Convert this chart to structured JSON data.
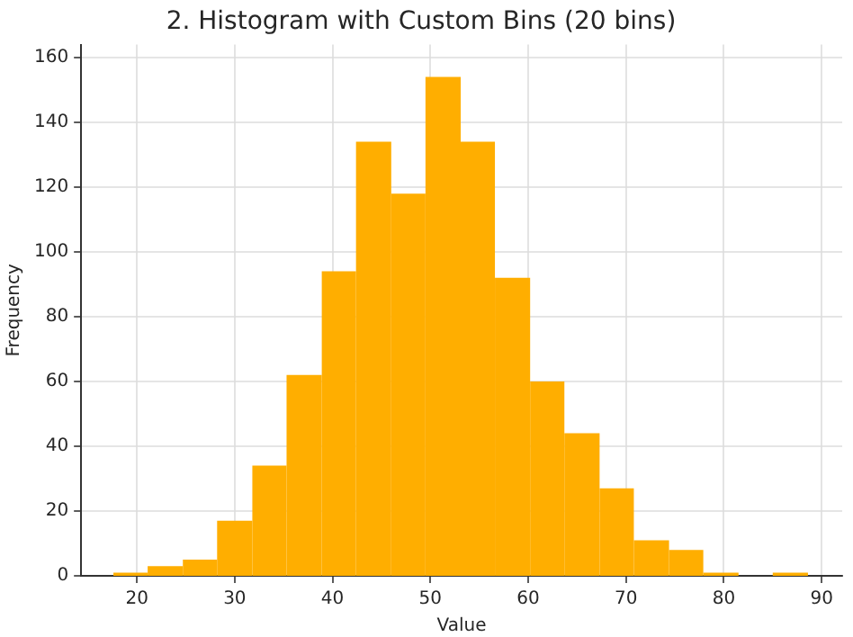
{
  "chart_data": {
    "type": "histogram",
    "title": "2. Histogram with Custom Bins (20 bins)",
    "xlabel": "Value",
    "ylabel": "Frequency",
    "bins": [
      17.6,
      21.1,
      24.7,
      28.2,
      31.8,
      35.3,
      38.9,
      42.4,
      46.0,
      49.5,
      53.1,
      56.6,
      60.2,
      63.7,
      67.3,
      70.8,
      74.4,
      77.9,
      81.5,
      85.0,
      88.6
    ],
    "values": [
      1,
      3,
      5,
      17,
      34,
      62,
      94,
      134,
      118,
      154,
      134,
      92,
      60,
      44,
      27,
      11,
      8,
      1,
      0,
      1
    ],
    "color": "#ffae00",
    "xlim": [
      14.3,
      92.1
    ],
    "xticks": [
      20,
      30,
      40,
      50,
      60,
      70,
      80,
      90
    ],
    "ylim": [
      0,
      164
    ],
    "yticks": [
      0,
      20,
      40,
      60,
      80,
      100,
      120,
      140,
      160
    ],
    "grid": true,
    "legend": false
  }
}
